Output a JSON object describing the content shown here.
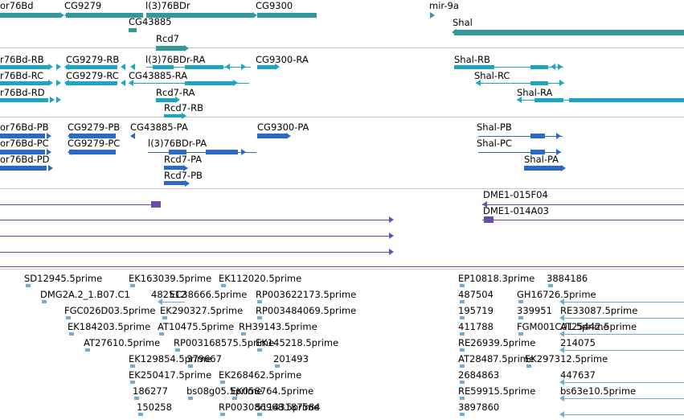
{
  "colors": {
    "gene": "#2e9a9a",
    "transcript": "#1aa6c4",
    "protein": "#2c68c8",
    "clone": "#6a4aaa",
    "est": "#6aaedb"
  },
  "tracks": {
    "genes": [
      {
        "label": "or76Bd"
      },
      {
        "label": "CG9279"
      },
      {
        "label": "CG43885"
      },
      {
        "label": "l(3)76BDr"
      },
      {
        "label": "Rcd7"
      },
      {
        "label": "CG9300"
      },
      {
        "label": "mir-9a"
      },
      {
        "label": "Shal"
      }
    ],
    "transcripts": [
      {
        "label": "r76Bd-RB"
      },
      {
        "label": "CG9279-RB"
      },
      {
        "label": "l(3)76BDr-RA"
      },
      {
        "label": "CG9300-RA"
      },
      {
        "label": "Shal-RB"
      },
      {
        "label": "r76Bd-RC"
      },
      {
        "label": "CG9279-RC"
      },
      {
        "label": "CG43885-RA"
      },
      {
        "label": "Shal-RC"
      },
      {
        "label": "r76Bd-RD"
      },
      {
        "label": "Rcd7-RA"
      },
      {
        "label": "Shal-RA"
      },
      {
        "label": "Rcd7-RB"
      }
    ],
    "proteins": [
      {
        "label": "or76Bd-PB"
      },
      {
        "label": "CG9279-PB"
      },
      {
        "label": "CG43885-PA"
      },
      {
        "label": "CG9300-PA"
      },
      {
        "label": "Shal-PB"
      },
      {
        "label": "or76Bd-PC"
      },
      {
        "label": "CG9279-PC"
      },
      {
        "label": "l(3)76BDr-PA"
      },
      {
        "label": "Shal-PC"
      },
      {
        "label": "or76Bd-PD"
      },
      {
        "label": "Rcd7-PA"
      },
      {
        "label": "Shal-PA"
      },
      {
        "label": "Rcd7-PB"
      }
    ],
    "clones": [
      {
        "label": "DME1-015F04"
      },
      {
        "label": "DME1-014A03"
      }
    ],
    "ests": [
      {
        "label": "SD12945.5prime"
      },
      {
        "label": "EK163039.5prime"
      },
      {
        "label": "EK112020.5prime"
      },
      {
        "label": "EP10818.3prime"
      },
      {
        "label": "3884186"
      },
      {
        "label": "DMG2A.2_1.B07.C1"
      },
      {
        "label": "482512"
      },
      {
        "label": "EC38666.5prime"
      },
      {
        "label": "RP003622173.5prime"
      },
      {
        "label": "487504"
      },
      {
        "label": "GH16726.5prime"
      },
      {
        "label": "FGC026D03.5prime"
      },
      {
        "label": "EK290327.5prime"
      },
      {
        "label": "RP003484069.5prime"
      },
      {
        "label": "195719"
      },
      {
        "label": "339951"
      },
      {
        "label": "RE33087.5prime"
      },
      {
        "label": "EK184203.5prime"
      },
      {
        "label": "AT10475.5prime"
      },
      {
        "label": "RH39143.5prime"
      },
      {
        "label": "411788"
      },
      {
        "label": "FGM001C01.5prime"
      },
      {
        "label": "AT25442.5prime"
      },
      {
        "label": "AT27610.5prime"
      },
      {
        "label": "RP003168575.5prime"
      },
      {
        "label": "EK145218.5prime"
      },
      {
        "label": "RE26939.5prime"
      },
      {
        "label": "214075"
      },
      {
        "label": "EK129854.5prime"
      },
      {
        "label": "379667"
      },
      {
        "label": "201493"
      },
      {
        "label": "AT28487.5prime"
      },
      {
        "label": "EK297312.5prime"
      },
      {
        "label": "EK250417.5prime"
      },
      {
        "label": "EK268462.5prime"
      },
      {
        "label": "2684863"
      },
      {
        "label": "447637"
      },
      {
        "label": "186277"
      },
      {
        "label": "bs08g05.5prime"
      },
      {
        "label": "EK058764.5prime"
      },
      {
        "label": "RE59915.5prime"
      },
      {
        "label": "bs63e10.5prime"
      },
      {
        "label": "150258"
      },
      {
        "label": "RP003086968.5prime"
      },
      {
        "label": "51143187584"
      },
      {
        "label": "3897860"
      }
    ]
  }
}
